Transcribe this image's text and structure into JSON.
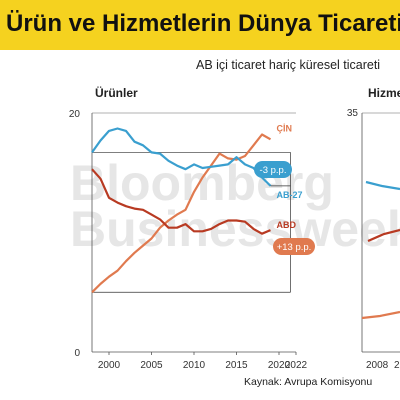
{
  "header": {
    "title": "Ürün ve Hizmetlerin Dünya Ticareti",
    "subtitle": "AB içi ticaret hariç küresel ticareti",
    "source": "Kaynak: Avrupa Komisyonu"
  },
  "watermark": {
    "line1": "Bloomberg",
    "line2": "Businessweek"
  },
  "colors": {
    "title_bg": "#f5d21f",
    "china": "#e07a4f",
    "eu27": "#3a9fcf",
    "usa": "#b83a22",
    "watermark": "#e6e6e6"
  },
  "chart_data": [
    {
      "type": "line",
      "panel_title": "Ürünler",
      "ylim": [
        0,
        20
      ],
      "xlim": [
        1998,
        2022
      ],
      "y_ticks": [
        "0",
        "20"
      ],
      "x_ticks": [
        "2000",
        "2005",
        "2010",
        "2015",
        "2020",
        "2022"
      ],
      "series": [
        {
          "name": "ÇİN",
          "color": "#e07a4f",
          "x": [
            1998,
            1999,
            2000,
            2001,
            2002,
            2003,
            2004,
            2005,
            2006,
            2007,
            2008,
            2009,
            2010,
            2011,
            2012,
            2013,
            2014,
            2015,
            2016,
            2017,
            2018,
            2019
          ],
          "y": [
            5.0,
            5.7,
            6.3,
            6.8,
            7.6,
            8.3,
            8.9,
            9.5,
            10.4,
            11.0,
            11.5,
            11.9,
            13.4,
            14.6,
            15.6,
            16.6,
            16.2,
            16.1,
            16.4,
            17.3,
            18.2,
            17.8
          ]
        },
        {
          "name": "AB-27",
          "color": "#3a9fcf",
          "x": [
            1998,
            1999,
            2000,
            2001,
            2002,
            2003,
            2004,
            2005,
            2006,
            2007,
            2008,
            2009,
            2010,
            2011,
            2012,
            2013,
            2014,
            2015,
            2016,
            2017,
            2018,
            2019
          ],
          "y": [
            16.7,
            17.7,
            18.5,
            18.7,
            18.5,
            17.6,
            17.3,
            16.7,
            16.6,
            16.0,
            15.6,
            15.3,
            15.7,
            15.4,
            15.5,
            15.6,
            15.7,
            16.3,
            15.7,
            15.4,
            14.6,
            13.9
          ]
        },
        {
          "name": "ABD",
          "color": "#b83a22",
          "x": [
            1998,
            1999,
            2000,
            2001,
            2002,
            2003,
            2004,
            2005,
            2006,
            2007,
            2008,
            2009,
            2010,
            2011,
            2012,
            2013,
            2014,
            2015,
            2016,
            2017,
            2018,
            2019
          ],
          "y": [
            15.3,
            14.5,
            12.9,
            12.5,
            12.2,
            12.0,
            11.9,
            11.5,
            11.1,
            10.4,
            10.4,
            10.7,
            10.1,
            10.1,
            10.3,
            10.7,
            11.0,
            11.0,
            10.9,
            10.3,
            9.9,
            10.2
          ]
        }
      ],
      "annotations": [
        {
          "text": "-3 p.p.",
          "color": "#3a9fcf"
        },
        {
          "text": "+13 p.p.",
          "color": "#e07a4f"
        }
      ]
    },
    {
      "type": "line",
      "panel_title": "Hizme",
      "y_ticks": [
        "35"
      ],
      "x_ticks": [
        "2008",
        "2"
      ],
      "series": []
    }
  ]
}
